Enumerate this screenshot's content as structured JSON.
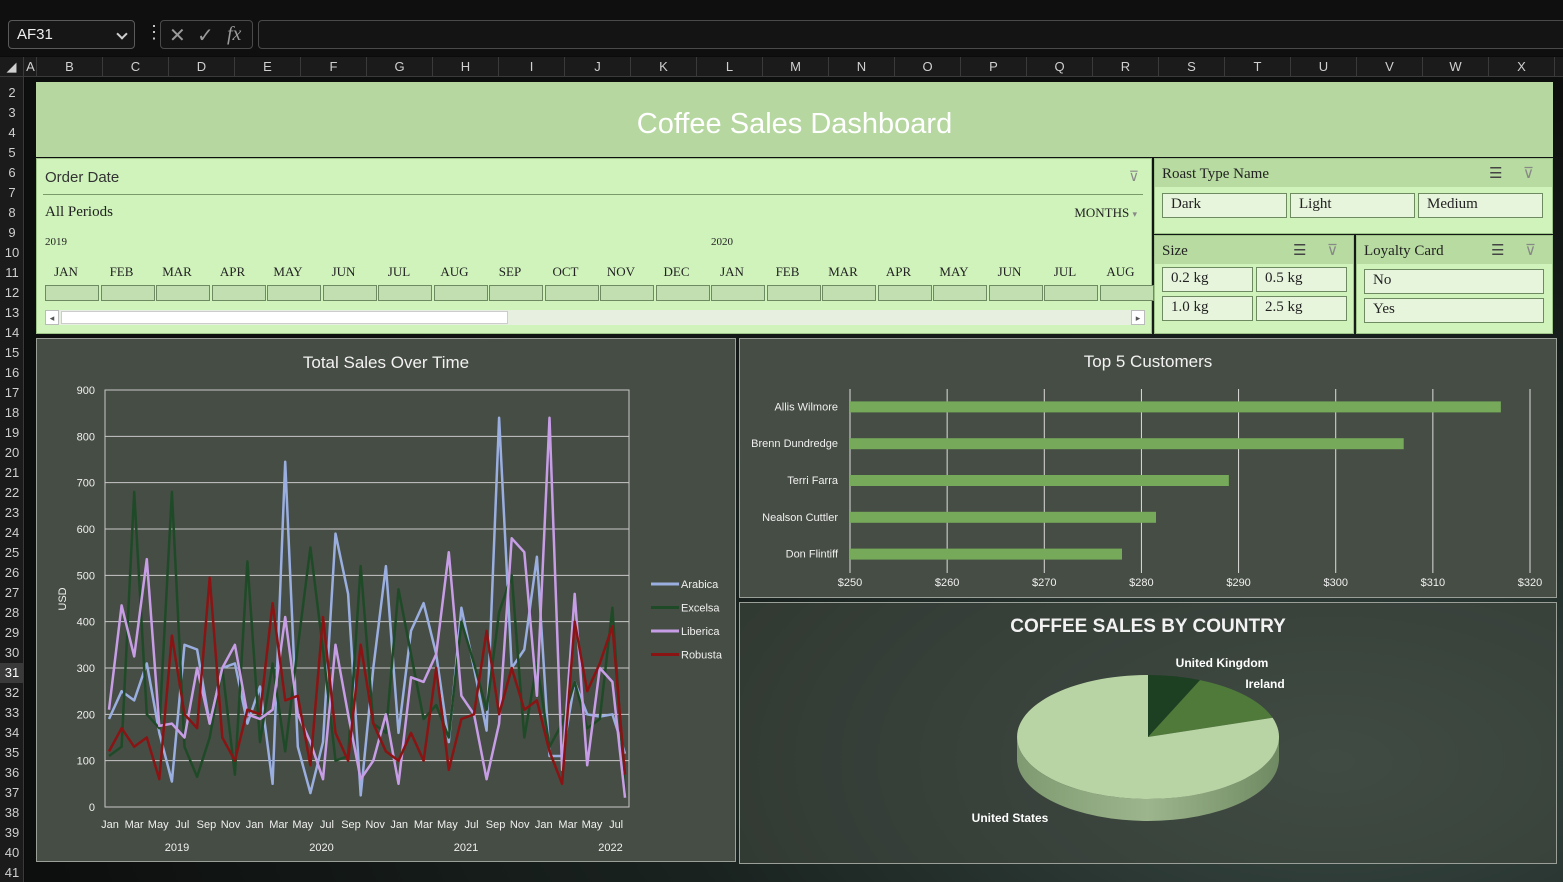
{
  "formula_bar": {
    "name_box": "AF31",
    "cancel_icon": "✕",
    "enter_icon": "✓",
    "fx_icon": "fx",
    "formula": ""
  },
  "columns": [
    "A",
    "B",
    "C",
    "D",
    "E",
    "F",
    "G",
    "H",
    "I",
    "J",
    "K",
    "L",
    "M",
    "N",
    "O",
    "P",
    "Q",
    "R",
    "S",
    "T",
    "U",
    "V",
    "W",
    "X"
  ],
  "rows": [
    "2",
    "3",
    "4",
    "5",
    "6",
    "7",
    "8",
    "9",
    "10",
    "11",
    "12",
    "13",
    "14",
    "15",
    "16",
    "17",
    "18",
    "19",
    "20",
    "21",
    "22",
    "23",
    "24",
    "25",
    "26",
    "27",
    "28",
    "29",
    "30",
    "31",
    "32",
    "33",
    "34",
    "35",
    "36",
    "37",
    "38",
    "39",
    "40",
    "41"
  ],
  "selected_row": "31",
  "dashboard": {
    "title": "Coffee Sales Dashboard"
  },
  "timeline": {
    "header": "Order Date",
    "periods_label": "All Periods",
    "level": "MONTHS",
    "years": [
      "2019",
      "2020"
    ],
    "months": [
      "JAN",
      "FEB",
      "MAR",
      "APR",
      "MAY",
      "JUN",
      "JUL",
      "AUG",
      "SEP",
      "OCT",
      "NOV",
      "DEC",
      "JAN",
      "FEB",
      "MAR",
      "APR",
      "MAY",
      "JUN",
      "JUL",
      "AUG"
    ],
    "scroll_left": "◂",
    "scroll_right": "▸"
  },
  "slicers": {
    "roast": {
      "title": "Roast Type Name",
      "items": [
        "Dark",
        "Light",
        "Medium"
      ]
    },
    "size": {
      "title": "Size",
      "items": [
        "0.2 kg",
        "0.5 kg",
        "1.0 kg",
        "2.5 kg"
      ]
    },
    "loyalty": {
      "title": "Loyalty Card",
      "items": [
        "No",
        "Yes"
      ]
    }
  },
  "colors": {
    "arabica": "#9aaee0",
    "excelsa": "#1f4a28",
    "liberica": "#c79ee6",
    "robusta": "#8a1414",
    "bar": "#76a95a",
    "pie_us": "#b9d4a4",
    "pie_ie": "#4f7a3a",
    "pie_uk": "#1d3f22"
  },
  "chart_data": [
    {
      "type": "line",
      "title": "Total Sales Over Time",
      "ylabel": "USD",
      "ylim": [
        0,
        900
      ],
      "yticks": [
        0,
        100,
        200,
        300,
        400,
        500,
        600,
        700,
        800,
        900
      ],
      "x_tick_labels": [
        "Jan",
        "Mar",
        "May",
        "Jul",
        "Sep",
        "Nov",
        "Jan",
        "Mar",
        "May",
        "Jul",
        "Sep",
        "Nov",
        "Jan",
        "Mar",
        "May",
        "Jul",
        "Sep",
        "Nov",
        "Jan",
        "Mar",
        "May",
        "Jul"
      ],
      "years": [
        "2019",
        "2020",
        "2021",
        "2022"
      ],
      "legend": "right",
      "grid": true,
      "series": [
        {
          "name": "Arabica",
          "values": [
            190,
            250,
            230,
            310,
            160,
            55,
            350,
            340,
            180,
            300,
            310,
            180,
            260,
            50,
            745,
            130,
            30,
            140,
            590,
            460,
            25,
            300,
            520,
            160,
            380,
            440,
            330,
            140,
            430,
            300,
            165,
            840,
            300,
            340,
            540,
            110,
            110,
            270,
            200,
            195,
            200,
            115
          ]
        },
        {
          "name": "Excelsa",
          "values": [
            110,
            130,
            680,
            200,
            170,
            680,
            130,
            65,
            150,
            300,
            70,
            530,
            140,
            310,
            120,
            345,
            560,
            340,
            100,
            110,
            520,
            180,
            160,
            470,
            330,
            190,
            220,
            150,
            400,
            310,
            210,
            420,
            500,
            150,
            310,
            130,
            180,
            270,
            170,
            190,
            430,
            30
          ]
        },
        {
          "name": "Liberica",
          "values": [
            210,
            435,
            325,
            535,
            175,
            180,
            150,
            300,
            180,
            300,
            350,
            200,
            190,
            210,
            410,
            200,
            140,
            60,
            350,
            200,
            60,
            100,
            200,
            50,
            280,
            270,
            330,
            550,
            240,
            200,
            60,
            180,
            580,
            550,
            240,
            840,
            80,
            460,
            90,
            300,
            270,
            20
          ]
        },
        {
          "name": "Robusta",
          "values": [
            120,
            170,
            130,
            150,
            60,
            370,
            200,
            170,
            495,
            150,
            100,
            210,
            200,
            440,
            230,
            240,
            90,
            410,
            160,
            100,
            350,
            180,
            120,
            100,
            160,
            100,
            300,
            80,
            190,
            200,
            380,
            200,
            300,
            210,
            230,
            120,
            50,
            400,
            250,
            310,
            390,
            70
          ]
        }
      ]
    },
    {
      "type": "bar",
      "orientation": "horizontal",
      "title": "Top 5 Customers",
      "categories": [
        "Allis Wilmore",
        "Brenn Dundredge",
        "Terri Farra",
        "Nealson Cuttler",
        "Don Flintiff"
      ],
      "values": [
        317,
        307,
        289,
        281.5,
        278
      ],
      "xlim": [
        250,
        320
      ],
      "x_tick_labels": [
        "$250",
        "$260",
        "$270",
        "$280",
        "$290",
        "$300",
        "$310",
        "$320"
      ],
      "grid": true
    },
    {
      "type": "pie",
      "title": "COFFEE SALES BY COUNTRY",
      "categories": [
        "United States",
        "Ireland",
        "United Kingdom"
      ],
      "values": [
        80,
        13.5,
        6.5
      ]
    }
  ]
}
